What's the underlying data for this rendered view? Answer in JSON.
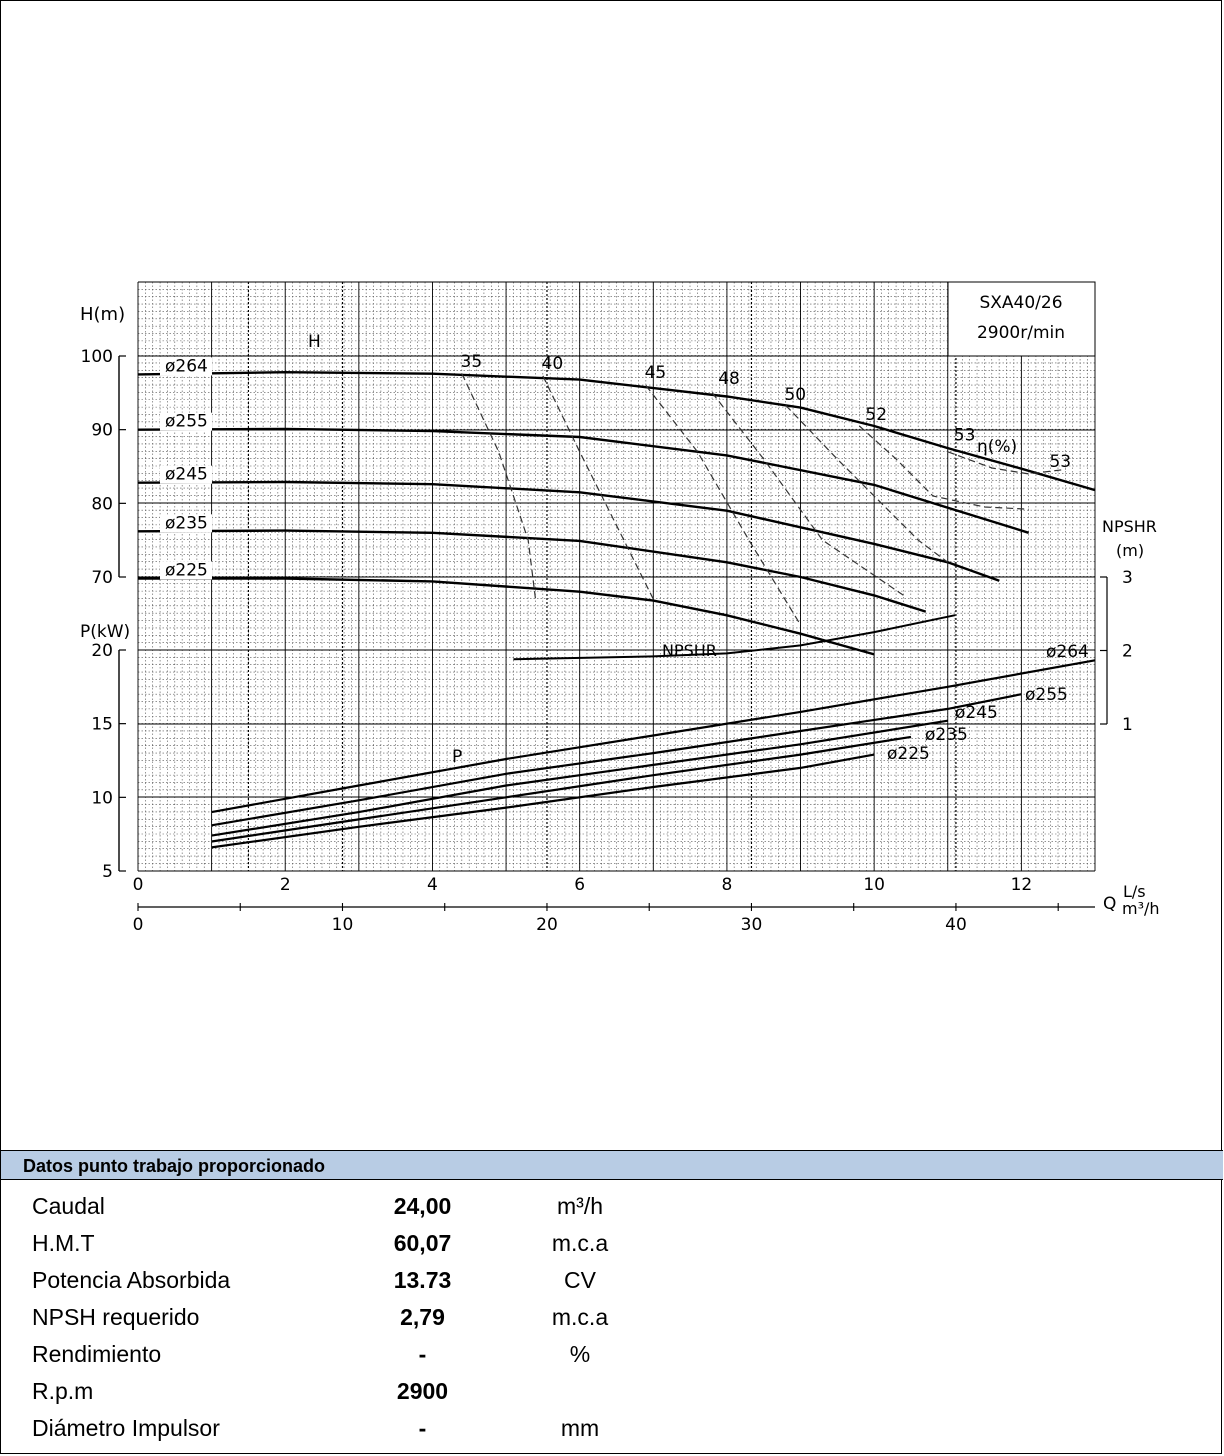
{
  "chart_data": {
    "type": "line",
    "model": "SXA40/26",
    "speed": "2900r/min",
    "axes": {
      "head": {
        "label": "H(m)",
        "ticks": [
          "100",
          "90",
          "80",
          "70"
        ],
        "range": [
          70,
          100
        ]
      },
      "power": {
        "label": "P(kW)",
        "ticks": [
          "20",
          "15",
          "10",
          "5"
        ],
        "range": [
          5,
          20
        ]
      },
      "npshr": {
        "label_1": "NPSHR",
        "label_2": "(m)",
        "ticks": [
          "3",
          "2",
          "1"
        ],
        "range": [
          1,
          3
        ]
      },
      "flow_ls": {
        "label": "L/s",
        "ticks": [
          "0",
          "2",
          "4",
          "6",
          "8",
          "10",
          "12"
        ],
        "range": [
          0,
          13
        ]
      },
      "flow_m3h": {
        "label": "m³/h",
        "ticks": [
          "0",
          "10",
          "20",
          "30",
          "40"
        ],
        "range": [
          0,
          46.8
        ]
      },
      "q_label": "Q"
    },
    "labels": {
      "h_curve": "H",
      "p_curve": "P",
      "npshr_curve": "NPSHR",
      "eff": "η(%)"
    },
    "head_curves": [
      {
        "name": "ø264",
        "points": [
          [
            0,
            97.5
          ],
          [
            2,
            97.8
          ],
          [
            4,
            97.6
          ],
          [
            6,
            96.8
          ],
          [
            8,
            94.5
          ],
          [
            9,
            93
          ],
          [
            10,
            90.5
          ],
          [
            11,
            87.5
          ],
          [
            12,
            84.7
          ],
          [
            13,
            81.8
          ]
        ]
      },
      {
        "name": "ø255",
        "points": [
          [
            0,
            90
          ],
          [
            2,
            90.1
          ],
          [
            4,
            89.8
          ],
          [
            6,
            89
          ],
          [
            8,
            86.5
          ],
          [
            10,
            82.5
          ],
          [
            12.1,
            76
          ]
        ]
      },
      {
        "name": "ø245",
        "points": [
          [
            0,
            82.8
          ],
          [
            2,
            82.9
          ],
          [
            4,
            82.6
          ],
          [
            6,
            81.5
          ],
          [
            8,
            79
          ],
          [
            10,
            74.5
          ],
          [
            11,
            72
          ],
          [
            11.7,
            69.5
          ]
        ]
      },
      {
        "name": "ø235",
        "points": [
          [
            0,
            76.2
          ],
          [
            2,
            76.3
          ],
          [
            4,
            76
          ],
          [
            6,
            74.9
          ],
          [
            8,
            72
          ],
          [
            9,
            70
          ],
          [
            10,
            67.5
          ],
          [
            10.7,
            65.3
          ]
        ]
      },
      {
        "name": "ø225",
        "points": [
          [
            0,
            69.8
          ],
          [
            2,
            69.8
          ],
          [
            4,
            69.4
          ],
          [
            6,
            68
          ],
          [
            7,
            66.8
          ],
          [
            8,
            64.8
          ],
          [
            9,
            62.3
          ],
          [
            10,
            59.5
          ]
        ]
      }
    ],
    "power_curves": [
      {
        "name": "ø264",
        "points": [
          [
            1,
            9
          ],
          [
            3,
            10.8
          ],
          [
            5,
            12.6
          ],
          [
            7,
            14.2
          ],
          [
            9,
            15.8
          ],
          [
            11,
            17.5
          ],
          [
            13,
            19.3
          ]
        ]
      },
      {
        "name": "ø255",
        "points": [
          [
            1,
            8.1
          ],
          [
            3,
            9.8
          ],
          [
            5,
            11.6
          ],
          [
            7,
            13
          ],
          [
            9,
            14.5
          ],
          [
            11,
            16
          ],
          [
            12,
            17
          ]
        ]
      },
      {
        "name": "ø245",
        "points": [
          [
            1,
            7.4
          ],
          [
            3,
            9
          ],
          [
            5,
            10.8
          ],
          [
            7,
            12.2
          ],
          [
            9,
            13.6
          ],
          [
            11,
            15.2
          ]
        ]
      },
      {
        "name": "ø235",
        "points": [
          [
            1,
            7
          ],
          [
            3,
            8.5
          ],
          [
            5,
            10
          ],
          [
            7,
            11.5
          ],
          [
            9,
            12.9
          ],
          [
            10.5,
            14.1
          ]
        ]
      },
      {
        "name": "ø225",
        "points": [
          [
            1,
            6.6
          ],
          [
            3,
            8
          ],
          [
            5,
            9.3
          ],
          [
            7,
            10.7
          ],
          [
            9,
            12
          ],
          [
            10,
            12.9
          ]
        ]
      }
    ],
    "npshr_curve": {
      "points": [
        [
          5.1,
          1.88
        ],
        [
          7,
          1.92
        ],
        [
          8,
          1.96
        ],
        [
          9,
          2.07
        ],
        [
          10,
          2.25
        ],
        [
          11.1,
          2.48
        ]
      ]
    },
    "efficiency_lines": [
      {
        "label": "35",
        "points": [
          [
            4.4,
            97.6
          ],
          [
            4.9,
            87
          ],
          [
            5.3,
            75
          ],
          [
            5.4,
            67
          ]
        ]
      },
      {
        "label": "40",
        "points": [
          [
            5.5,
            97.3
          ],
          [
            6,
            87
          ],
          [
            6.6,
            75
          ],
          [
            7,
            67
          ]
        ]
      },
      {
        "label": "45",
        "points": [
          [
            6.9,
            96
          ],
          [
            7.6,
            87
          ],
          [
            8.3,
            75
          ],
          [
            9,
            63.5
          ]
        ]
      },
      {
        "label": "48",
        "points": [
          [
            7.8,
            95
          ],
          [
            8.5,
            86
          ],
          [
            9.3,
            75
          ],
          [
            10.4,
            67.5
          ]
        ]
      },
      {
        "label": "50",
        "points": [
          [
            8.8,
            93.3
          ],
          [
            9.5,
            86
          ],
          [
            10.6,
            75
          ],
          [
            11,
            72
          ]
        ]
      },
      {
        "label": "52",
        "points": [
          [
            9.8,
            90.5
          ],
          [
            10.3,
            86
          ],
          [
            10.8,
            81
          ],
          [
            11.5,
            79.5
          ],
          [
            12.1,
            79.2
          ]
        ]
      },
      {
        "label": "53",
        "points": [
          [
            11,
            87
          ],
          [
            11.6,
            84.8
          ],
          [
            12.1,
            84
          ],
          [
            12.6,
            84.6
          ]
        ]
      }
    ],
    "eff_labels": [
      {
        "text": "35",
        "q": 4.3,
        "h": 98.8
      },
      {
        "text": "40",
        "q": 5.4,
        "h": 98.5
      },
      {
        "text": "45",
        "q": 6.8,
        "h": 97.3
      },
      {
        "text": "48",
        "q": 7.8,
        "h": 96.5
      },
      {
        "text": "50",
        "q": 8.7,
        "h": 94.3
      },
      {
        "text": "52",
        "q": 9.8,
        "h": 91.6
      },
      {
        "text": "53",
        "q": 11,
        "h": 88.8
      },
      {
        "text": "53",
        "q": 12.3,
        "h": 85.2
      }
    ]
  },
  "panel": {
    "title": "Datos punto trabajo proporcionado",
    "rows": [
      {
        "label": "Caudal",
        "value": "24,00",
        "unit": "m³/h"
      },
      {
        "label": "H.M.T",
        "value": "60,07",
        "unit": "m.c.a"
      },
      {
        "label": "Potencia Absorbida",
        "value": "13.73",
        "unit": "CV"
      },
      {
        "label": "NPSH requerido",
        "value": "2,79",
        "unit": "m.c.a"
      },
      {
        "label": "Rendimiento",
        "value": "-",
        "unit": "%"
      },
      {
        "label": "R.p.m",
        "value": "2900",
        "unit": ""
      },
      {
        "label": "Diámetro Impulsor",
        "value": "-",
        "unit": "mm"
      }
    ]
  }
}
